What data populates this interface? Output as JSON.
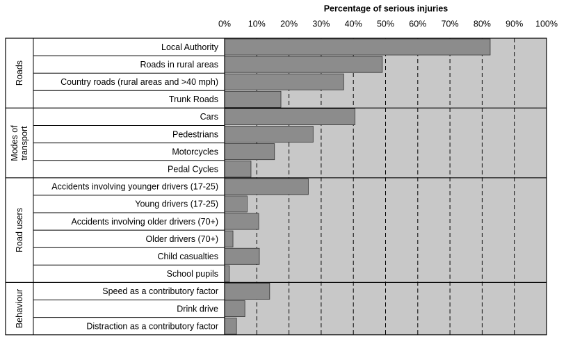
{
  "chart_data": {
    "type": "bar",
    "orientation": "horizontal",
    "x_label": "Percentage of serious injuries",
    "xlim": [
      0,
      100
    ],
    "xticks": [
      {
        "value": 0,
        "label": "0%"
      },
      {
        "value": 10,
        "label": "10%"
      },
      {
        "value": 20,
        "label": "20%"
      },
      {
        "value": 30,
        "label": "30%"
      },
      {
        "value": 40,
        "label": "40%"
      },
      {
        "value": 50,
        "label": "50%"
      },
      {
        "value": 60,
        "label": "60%"
      },
      {
        "value": 70,
        "label": "70%"
      },
      {
        "value": 80,
        "label": "80%"
      },
      {
        "value": 90,
        "label": "90%"
      },
      {
        "value": 100,
        "label": "100%"
      }
    ],
    "grid": true,
    "color": "#8c8c8c",
    "background_color": "#c8c8c8",
    "groups": [
      {
        "name": "Roads",
        "categories": [
          "Local Authority",
          "Roads in rural areas",
          "Country roads (rural areas and >40 mph)",
          "Trunk Roads"
        ],
        "values": [
          82.5,
          49,
          37,
          17.5
        ]
      },
      {
        "name": "Modes of transport",
        "categories": [
          "Cars",
          "Pedestrians",
          "Motorcycles",
          "Pedal Cycles"
        ],
        "values": [
          40.5,
          27.5,
          15.5,
          8.2
        ]
      },
      {
        "name": "Road users",
        "categories": [
          "Accidents involving younger drivers (17-25)",
          "Young drivers (17-25)",
          "Accidents involving older drivers (70+)",
          "Older drivers (70+)",
          "Child casualties",
          "School pupils"
        ],
        "values": [
          26,
          7,
          10.6,
          2.6,
          10.8,
          1.5
        ]
      },
      {
        "name": "Behaviour",
        "categories": [
          "Speed as a contributory factor",
          "Drink drive",
          "Distraction as a contributory factor"
        ],
        "values": [
          14,
          6.3,
          3.7
        ]
      }
    ]
  }
}
